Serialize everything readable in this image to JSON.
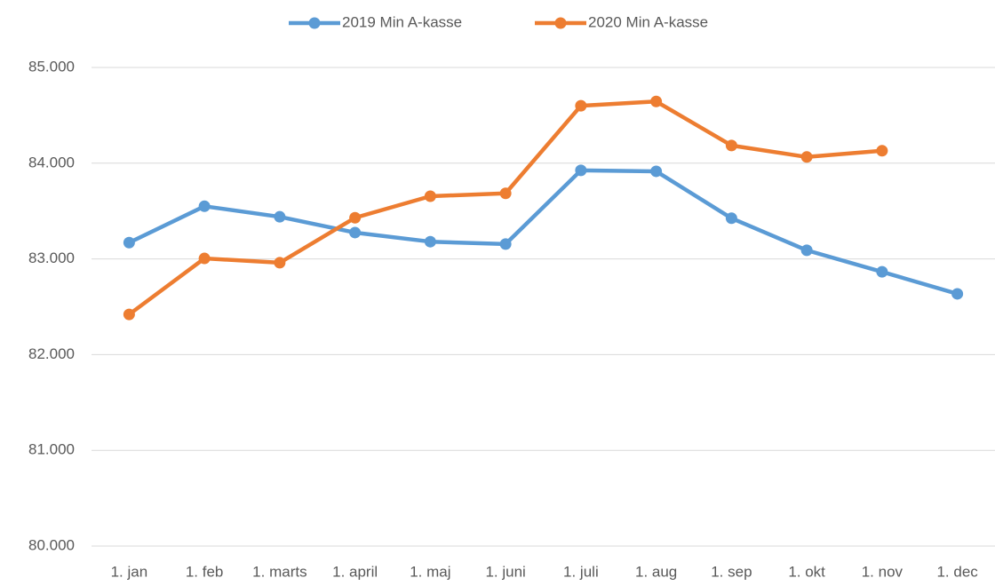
{
  "chart_data": {
    "type": "line",
    "categories": [
      "1. jan",
      "1. feb",
      "1. marts",
      "1. april",
      "1. maj",
      "1. juni",
      "1. juli",
      "1. aug",
      "1. sep",
      "1. okt",
      "1. nov",
      "1. dec"
    ],
    "series": [
      {
        "name": "2019 Min A-kasse",
        "color": "#5b9bd5",
        "values": [
          83170,
          83550,
          83440,
          83275,
          83180,
          83155,
          83925,
          83915,
          83425,
          83090,
          82865,
          82635
        ]
      },
      {
        "name": "2020 Min A-kasse",
        "color": "#ed7d31",
        "values": [
          82420,
          83005,
          82960,
          83430,
          83655,
          83685,
          84600,
          84645,
          84185,
          84065,
          84130,
          null
        ]
      }
    ],
    "ylim": [
      80000,
      85000
    ],
    "yticks": [
      {
        "value": 80000,
        "label": "80.000"
      },
      {
        "value": 81000,
        "label": "81.000"
      },
      {
        "value": 82000,
        "label": "82.000"
      },
      {
        "value": 83000,
        "label": "83.000"
      },
      {
        "value": 84000,
        "label": "84.000"
      },
      {
        "value": 85000,
        "label": "85.000"
      }
    ],
    "grid": true,
    "legend": "top"
  }
}
